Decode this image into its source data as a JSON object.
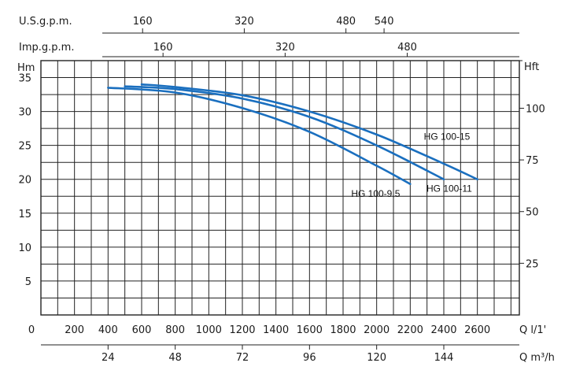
{
  "chart_data": {
    "type": "line",
    "x_unit_label": "Q l/1'",
    "x_ticks": [
      0,
      200,
      400,
      600,
      800,
      1000,
      1200,
      1400,
      1600,
      1800,
      2000,
      2200,
      2400,
      2600
    ],
    "x_range": [
      0,
      2850
    ],
    "y_left_label": "Hm",
    "y_left_ticks": [
      5,
      10,
      15,
      20,
      25,
      30,
      35
    ],
    "y_range": [
      0,
      37.5
    ],
    "y_right_label": "Hft",
    "y_right_ticks": [
      25,
      50,
      75,
      100
    ],
    "m3h_label": "Q m³/h",
    "m3h_ticks": [
      24,
      48,
      72,
      96,
      120,
      144
    ],
    "usgpm_label": "U.S.g.p.m.",
    "usgpm_ticks": [
      160,
      320,
      480,
      540
    ],
    "impgpm_label": "Imp.g.p.m.",
    "impgpm_ticks": [
      160,
      320,
      480
    ],
    "grid": true,
    "series": [
      {
        "name": "HG 100-9,5",
        "x": [
          400,
          800,
          1200,
          1600,
          2000,
          2200
        ],
        "y": [
          33.5,
          32.8,
          30.5,
          27.0,
          22.0,
          19.3
        ]
      },
      {
        "name": "HG 100-11",
        "x": [
          500,
          800,
          1200,
          1600,
          2000,
          2400
        ],
        "y": [
          33.7,
          33.3,
          31.9,
          29.2,
          25.0,
          20.0
        ]
      },
      {
        "name": "HG 100-15",
        "x": [
          600,
          800,
          1200,
          1600,
          2000,
          2400,
          2600
        ],
        "y": [
          34.0,
          33.6,
          32.4,
          30.0,
          26.6,
          22.3,
          20.0
        ]
      }
    ]
  }
}
